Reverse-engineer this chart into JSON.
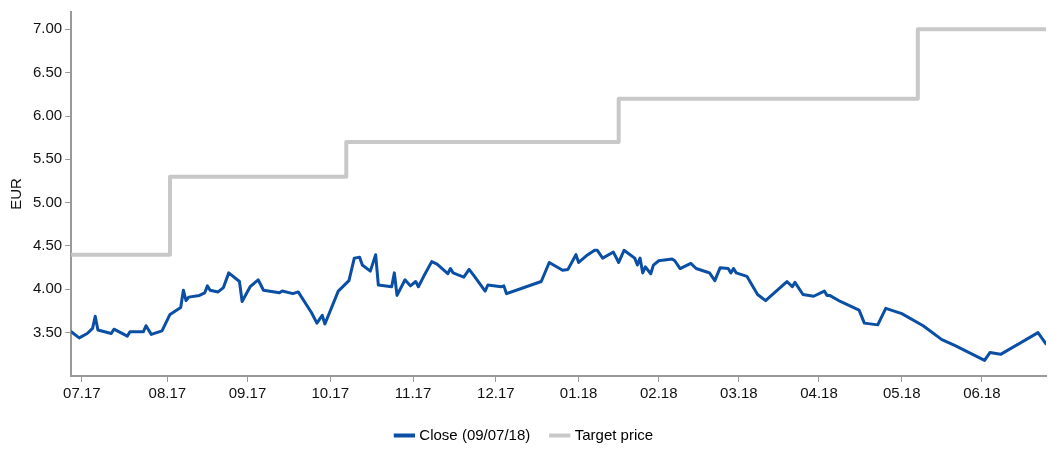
{
  "chart_data": {
    "type": "line",
    "ylabel": "EUR",
    "xlim": [
      "2017-07-09",
      "2018-07-09"
    ],
    "xticks": [
      {
        "value": "2017-07-13",
        "label": "07.17"
      },
      {
        "value": "2017-08-14",
        "label": "08.17"
      },
      {
        "value": "2017-09-13",
        "label": "09.17"
      },
      {
        "value": "2017-10-14",
        "label": "10.17"
      },
      {
        "value": "2017-11-14",
        "label": "11.17"
      },
      {
        "value": "2017-12-15",
        "label": "12.17"
      },
      {
        "value": "2018-01-15",
        "label": "01.18"
      },
      {
        "value": "2018-02-14",
        "label": "02.18"
      },
      {
        "value": "2018-03-16",
        "label": "03.18"
      },
      {
        "value": "2018-04-15",
        "label": "04.18"
      },
      {
        "value": "2018-05-16",
        "label": "05.18"
      },
      {
        "value": "2018-06-15",
        "label": "06.18"
      }
    ],
    "ylim": [
      3,
      7.2
    ],
    "yticks": [
      {
        "value": 3.5,
        "label": "3.50"
      },
      {
        "value": 4,
        "label": "4.00"
      },
      {
        "value": 4.5,
        "label": "4.50"
      },
      {
        "value": 5,
        "label": "5.00"
      },
      {
        "value": 5.5,
        "label": "5.50"
      },
      {
        "value": 6,
        "label": "6.00"
      },
      {
        "value": 6.5,
        "label": "6.50"
      },
      {
        "value": 7,
        "label": "7.00"
      }
    ],
    "grid": false,
    "legend": "bottom",
    "marker": "none",
    "line_style": "solid",
    "series": [
      {
        "name": "Close (09/07/18)",
        "color": "#0a4fa3",
        "x": [
          "2017-07-09",
          "2017-07-12",
          "2017-07-15",
          "2017-07-17",
          "2017-07-18",
          "2017-07-19",
          "2017-07-24",
          "2017-07-25",
          "2017-07-30",
          "2017-07-31",
          "2017-08-05",
          "2017-08-06",
          "2017-08-08",
          "2017-08-12",
          "2017-08-15",
          "2017-08-19",
          "2017-08-20",
          "2017-08-21",
          "2017-08-22",
          "2017-08-26",
          "2017-08-28",
          "2017-08-29",
          "2017-08-30",
          "2017-09-02",
          "2017-09-04",
          "2017-09-06",
          "2017-09-10",
          "2017-09-11",
          "2017-09-14",
          "2017-09-17",
          "2017-09-19",
          "2017-09-25",
          "2017-09-26",
          "2017-09-30",
          "2017-10-02",
          "2017-10-07",
          "2017-10-09",
          "2017-10-11",
          "2017-10-12",
          "2017-10-17",
          "2017-10-21",
          "2017-10-23",
          "2017-10-25",
          "2017-10-26",
          "2017-10-29",
          "2017-10-31",
          "2017-11-01",
          "2017-11-06",
          "2017-11-07",
          "2017-11-08",
          "2017-11-11",
          "2017-11-13",
          "2017-11-15",
          "2017-11-16",
          "2017-11-18",
          "2017-11-21",
          "2017-11-23",
          "2017-11-27",
          "2017-11-28",
          "2017-11-29",
          "2017-12-03",
          "2017-12-05",
          "2017-12-07",
          "2017-12-11",
          "2017-12-12",
          "2017-12-17",
          "2017-12-18",
          "2017-12-19",
          "2018-01-01",
          "2018-01-04",
          "2018-01-09",
          "2018-01-11",
          "2018-01-14",
          "2018-01-15",
          "2018-01-18",
          "2018-01-21",
          "2018-01-22",
          "2018-01-24",
          "2018-01-28",
          "2018-01-30",
          "2018-02-01",
          "2018-02-05",
          "2018-02-06",
          "2018-02-07",
          "2018-02-08",
          "2018-02-09",
          "2018-02-11",
          "2018-02-12",
          "2018-02-14",
          "2018-02-19",
          "2018-02-20",
          "2018-02-22",
          "2018-02-26",
          "2018-02-28",
          "2018-03-04",
          "2018-03-05",
          "2018-03-07",
          "2018-03-09",
          "2018-03-12",
          "2018-03-13",
          "2018-03-14",
          "2018-03-15",
          "2018-03-19",
          "2018-03-23",
          "2018-03-26",
          "2018-04-03",
          "2018-04-05",
          "2018-04-06",
          "2018-04-09",
          "2018-04-13",
          "2018-04-17",
          "2018-04-18",
          "2018-04-19",
          "2018-04-23",
          "2018-04-30",
          "2018-05-02",
          "2018-05-07",
          "2018-05-10",
          "2018-05-16",
          "2018-05-24",
          "2018-05-31",
          "2018-06-05",
          "2018-06-16",
          "2018-06-18",
          "2018-06-22",
          "2018-07-06",
          "2018-07-09"
        ],
        "values": [
          3.51,
          3.44,
          3.49,
          3.55,
          3.69,
          3.53,
          3.49,
          3.54,
          3.46,
          3.51,
          3.51,
          3.58,
          3.48,
          3.52,
          3.71,
          3.79,
          3.99,
          3.87,
          3.91,
          3.93,
          3.96,
          4.04,
          3.99,
          3.97,
          4.02,
          4.19,
          4.09,
          3.86,
          4.03,
          4.11,
          3.99,
          3.96,
          3.98,
          3.95,
          3.97,
          3.73,
          3.61,
          3.7,
          3.6,
          3.98,
          4.1,
          4.36,
          4.37,
          4.28,
          4.21,
          4.4,
          4.05,
          4.03,
          4.19,
          3.93,
          4.11,
          4.04,
          4.09,
          4.03,
          4.15,
          4.32,
          4.29,
          4.18,
          4.24,
          4.19,
          4.14,
          4.23,
          4.15,
          3.98,
          4.05,
          4.03,
          4.04,
          3.95,
          4.09,
          4.31,
          4.22,
          4.23,
          4.4,
          4.31,
          4.39,
          4.45,
          4.45,
          4.36,
          4.43,
          4.31,
          4.45,
          4.36,
          4.28,
          4.36,
          4.19,
          4.26,
          4.18,
          4.28,
          4.33,
          4.35,
          4.33,
          4.24,
          4.3,
          4.24,
          4.2,
          4.19,
          4.1,
          4.25,
          4.24,
          4.19,
          4.24,
          4.19,
          4.15,
          3.94,
          3.87,
          4.09,
          4.03,
          4.08,
          3.94,
          3.92,
          3.98,
          3.93,
          3.93,
          3.86,
          3.76,
          3.61,
          3.59,
          3.78,
          3.72,
          3.58,
          3.42,
          3.35,
          3.18,
          3.27,
          3.25,
          3.5,
          3.37
        ]
      },
      {
        "name": "Target price",
        "type": "step",
        "color": "#c8c8c8",
        "x": [
          "2017-07-09",
          "2017-08-15",
          "2017-10-20",
          "2018-01-30",
          "2018-05-22",
          "2018-07-09"
        ],
        "values": [
          4.4,
          5.3,
          5.7,
          6.2,
          7.0,
          7.0
        ]
      }
    ]
  }
}
